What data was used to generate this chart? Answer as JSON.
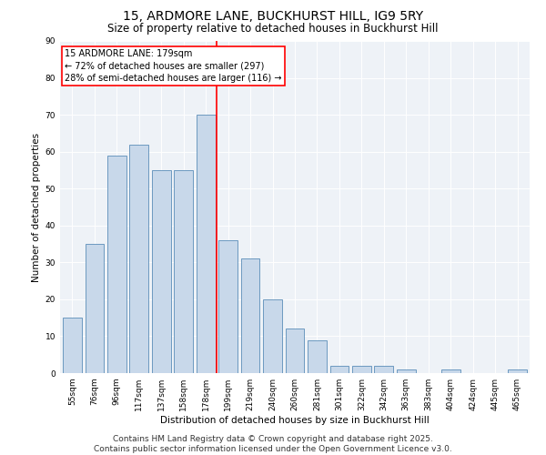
{
  "title": "15, ARDMORE LANE, BUCKHURST HILL, IG9 5RY",
  "subtitle": "Size of property relative to detached houses in Buckhurst Hill",
  "xlabel": "Distribution of detached houses by size in Buckhurst Hill",
  "ylabel": "Number of detached properties",
  "categories": [
    "55sqm",
    "76sqm",
    "96sqm",
    "117sqm",
    "137sqm",
    "158sqm",
    "178sqm",
    "199sqm",
    "219sqm",
    "240sqm",
    "260sqm",
    "281sqm",
    "301sqm",
    "322sqm",
    "342sqm",
    "363sqm",
    "383sqm",
    "404sqm",
    "424sqm",
    "445sqm",
    "465sqm"
  ],
  "values": [
    15,
    35,
    59,
    62,
    55,
    55,
    70,
    36,
    31,
    20,
    12,
    9,
    2,
    2,
    2,
    1,
    0,
    1,
    0,
    0,
    1
  ],
  "bar_color": "#c8d8ea",
  "bar_edge_color": "#5b8db8",
  "vline_x": 6.5,
  "vline_color": "red",
  "annotation_line1": "15 ARDMORE LANE: 179sqm",
  "annotation_line2": "← 72% of detached houses are smaller (297)",
  "annotation_line3": "28% of semi-detached houses are larger (116) →",
  "annotation_box_color": "white",
  "annotation_box_edge": "red",
  "ylim": [
    0,
    90
  ],
  "yticks": [
    0,
    10,
    20,
    30,
    40,
    50,
    60,
    70,
    80,
    90
  ],
  "footer": "Contains HM Land Registry data © Crown copyright and database right 2025.\nContains public sector information licensed under the Open Government Licence v3.0.",
  "bg_color": "#eef2f7",
  "title_fontsize": 10,
  "subtitle_fontsize": 8.5,
  "axis_label_fontsize": 7.5,
  "tick_fontsize": 6.5,
  "annotation_fontsize": 7,
  "footer_fontsize": 6.5
}
